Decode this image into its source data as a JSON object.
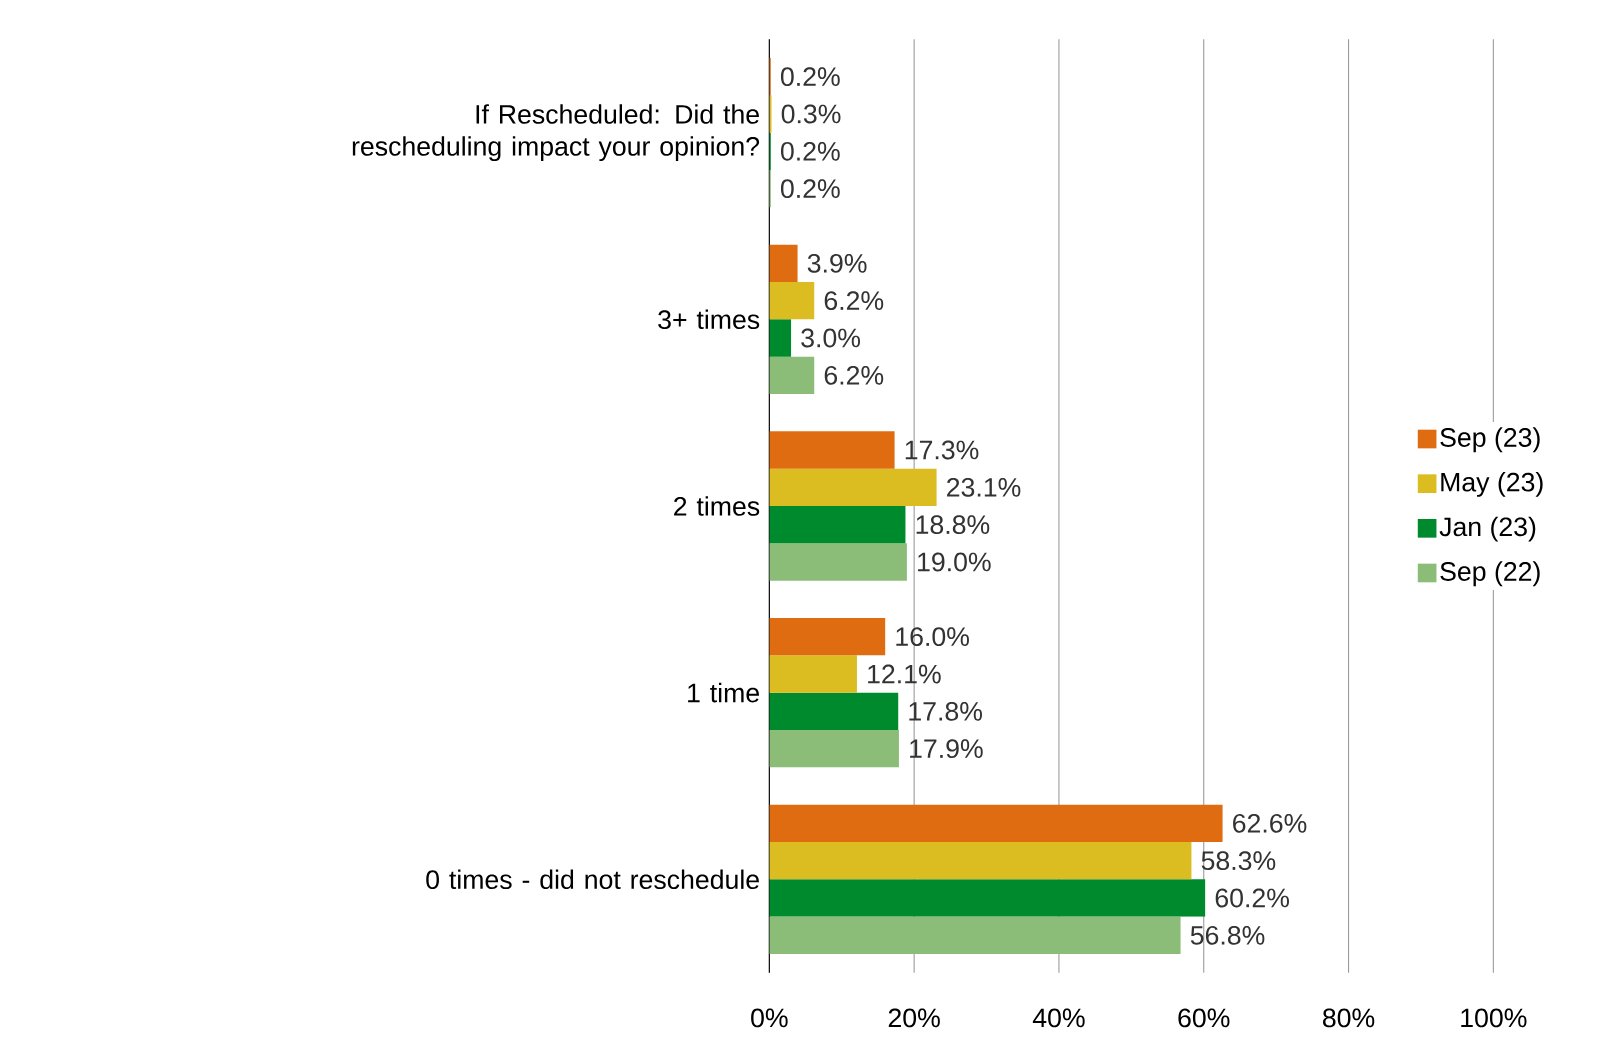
{
  "chart_data": {
    "type": "bar",
    "orientation": "horizontal",
    "categories": [
      "If Rescheduled: Did the rescheduling impact your opinion?",
      "3+ times",
      "2 times",
      "1 time",
      "0 times - did not reschedule"
    ],
    "series": [
      {
        "name": "Sep (23)",
        "color": "#e06c12",
        "values": [
          0.2,
          3.9,
          17.3,
          16.0,
          62.6
        ],
        "value_labels": [
          "0.2%",
          "3.9%",
          "17.3%",
          "16.0%",
          "62.6%"
        ]
      },
      {
        "name": "May (23)",
        "color": "#dbbd22",
        "values": [
          0.3,
          6.2,
          23.1,
          12.1,
          58.3
        ],
        "value_labels": [
          "0.3%",
          "6.2%",
          "23.1%",
          "12.1%",
          "58.3%"
        ]
      },
      {
        "name": "Jan (23)",
        "color": "#008a2e",
        "values": [
          0.2,
          3.0,
          18.8,
          17.8,
          60.2
        ],
        "value_labels": [
          "0.2%",
          "3.0%",
          "18.8%",
          "17.8%",
          "60.2%"
        ]
      },
      {
        "name": "Sep (22)",
        "color": "#8bbd78",
        "values": [
          0.2,
          6.2,
          19.0,
          17.9,
          56.8
        ],
        "value_labels": [
          "0.2%",
          "6.2%",
          "19.0%",
          "17.9%",
          "56.8%"
        ]
      }
    ],
    "xlim": [
      0,
      100
    ],
    "xticks": [
      {
        "value": 0,
        "label": "0%"
      },
      {
        "value": 20,
        "label": "20%"
      },
      {
        "value": 40,
        "label": "40%"
      },
      {
        "value": 60,
        "label": "60%"
      },
      {
        "value": 80,
        "label": "80%"
      },
      {
        "value": 100,
        "label": "100%"
      }
    ],
    "grid": "x",
    "legend": "right"
  }
}
